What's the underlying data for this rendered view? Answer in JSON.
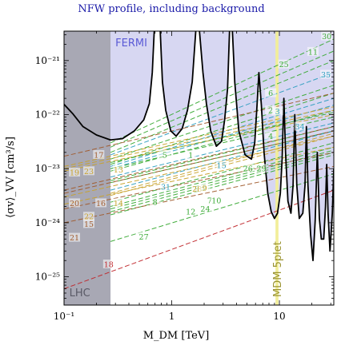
{
  "chart_data": {
    "type": "line",
    "title": "NFW profile, including background",
    "xlabel": "M_DM [TeV]",
    "ylabel": "⟨σv⟩_VV [cm³/s]",
    "x_scale": "log",
    "y_scale": "log",
    "xlim": [
      0.1,
      32
    ],
    "ylim": [
      3e-26,
      3.5e-21
    ],
    "x_ticks": [
      {
        "v": 0.1,
        "label": "10⁻¹"
      },
      {
        "v": 1,
        "label": "1"
      },
      {
        "v": 10,
        "label": "10"
      }
    ],
    "y_ticks": [
      {
        "v": 1e-25,
        "label": "10⁻²⁵"
      },
      {
        "v": 1e-24,
        "label": "10⁻²⁴"
      },
      {
        "v": 1e-23,
        "label": "10⁻²³"
      },
      {
        "v": 1e-22,
        "label": "10⁻²²"
      },
      {
        "v": 1e-21,
        "label": "10⁻²¹"
      }
    ],
    "regions": [
      {
        "name": "LHC",
        "x_range": [
          0.1,
          0.27
        ],
        "y_range": [
          3e-26,
          3.5e-21
        ],
        "color": "#a8a8b4"
      },
      {
        "name": "FERMI",
        "x_range": [
          0.27,
          32
        ],
        "boundary": "upper limit curve",
        "color": "#d7d7f2"
      },
      {
        "name": "MDM 5plet",
        "x_range": [
          9.2,
          9.8
        ],
        "color": "#f2ee9a"
      }
    ],
    "limit_curve_color": "#000000",
    "limit_curve_points": [
      [
        0.1,
        1.55e-22
      ],
      [
        0.12,
        1.05e-22
      ],
      [
        0.15,
        6e-23
      ],
      [
        0.2,
        4.2e-23
      ],
      [
        0.27,
        3.4e-23
      ],
      [
        0.35,
        3.6e-23
      ],
      [
        0.45,
        5e-23
      ],
      [
        0.55,
        8e-23
      ],
      [
        0.62,
        1.6e-22
      ],
      [
        0.66,
        6e-22
      ],
      [
        0.69,
        4e-21
      ],
      [
        0.78,
        4e-21
      ],
      [
        0.82,
        4e-22
      ],
      [
        0.88,
        1.2e-22
      ],
      [
        0.98,
        5e-23
      ],
      [
        1.1,
        4e-23
      ],
      [
        1.25,
        5.5e-23
      ],
      [
        1.4,
        1.2e-22
      ],
      [
        1.55,
        4e-22
      ],
      [
        1.68,
        4e-21
      ],
      [
        1.8,
        4e-21
      ],
      [
        1.95,
        6e-22
      ],
      [
        2.1,
        1.6e-22
      ],
      [
        2.3,
        5e-23
      ],
      [
        2.6,
        2.6e-23
      ],
      [
        2.9,
        3.2e-23
      ],
      [
        3.1,
        8e-23
      ],
      [
        3.3,
        3e-22
      ],
      [
        3.45,
        4e-21
      ],
      [
        3.65,
        4e-21
      ],
      [
        3.85,
        4e-22
      ],
      [
        4.2,
        5e-23
      ],
      [
        4.8,
        1.8e-23
      ],
      [
        5.5,
        1.5e-23
      ],
      [
        5.9,
        3e-23
      ],
      [
        6.2,
        1.5e-22
      ],
      [
        6.45,
        6e-22
      ],
      [
        6.8,
        1.5e-22
      ],
      [
        7.2,
        2e-23
      ],
      [
        7.8,
        3.5e-24
      ],
      [
        8.4,
        1.6e-24
      ],
      [
        9.0,
        1.2e-24
      ],
      [
        9.6,
        1.5e-24
      ],
      [
        10.2,
        3.5e-24
      ],
      [
        10.6,
        1.5e-23
      ],
      [
        11.0,
        2e-22
      ],
      [
        11.4,
        2e-23
      ],
      [
        12.0,
        2.5e-24
      ],
      [
        12.8,
        1.5e-24
      ],
      [
        13.4,
        5e-24
      ],
      [
        13.9,
        1e-22
      ],
      [
        14.5,
        5e-24
      ],
      [
        15.3,
        1.2e-24
      ],
      [
        16.5,
        1.5e-24
      ],
      [
        17.3,
        5e-24
      ],
      [
        17.8,
        6e-23
      ],
      [
        18.4,
        5e-24
      ],
      [
        19.5,
        6e-25
      ],
      [
        20.5,
        2e-25
      ],
      [
        21.5,
        1.1e-24
      ],
      [
        22.5,
        2e-23
      ],
      [
        23.5,
        1.2e-24
      ],
      [
        24.5,
        5e-25
      ],
      [
        25.8,
        5e-25
      ],
      [
        26.8,
        2e-24
      ],
      [
        27.5,
        1.2e-23
      ],
      [
        28.3,
        1.5e-24
      ],
      [
        29.5,
        3e-25
      ],
      [
        31,
        1.5e-24
      ],
      [
        32,
        1e-23
      ]
    ],
    "series": [
      {
        "name": "30",
        "x": [
          0.27,
          32
        ],
        "y": [
          3e-23,
          2.5e-21
        ],
        "color": "#3aaa35",
        "label_at": [
          27.5,
          2.8e-21
        ]
      },
      {
        "name": "11",
        "x": [
          0.27,
          32
        ],
        "y": [
          2.5e-23,
          1.5e-21
        ],
        "color": "#3aaa35",
        "label_at": [
          20.5,
          1.45e-21
        ]
      },
      {
        "name": "25",
        "x": [
          0.27,
          32
        ],
        "y": [
          2e-23,
          1e-21
        ],
        "color": "#3aaa35",
        "label_at": [
          11,
          8.5e-22
        ]
      },
      {
        "name": "35",
        "x": [
          0.27,
          32
        ],
        "y": [
          1.8e-23,
          6e-22
        ],
        "color": "#2f9fc0",
        "label_at": [
          27,
          5.5e-22
        ]
      },
      {
        "name": "6",
        "x": [
          0.27,
          32
        ],
        "y": [
          1.5e-23,
          3.5e-22
        ],
        "color": "#3aaa35",
        "label_at": [
          8.3,
          2.5e-22
        ]
      },
      {
        "name": "2",
        "x": [
          0.27,
          32
        ],
        "y": [
          1.2e-23,
          2.5e-22
        ],
        "color": "#3aaa35",
        "label_at": [
          8.3,
          1.2e-22
        ]
      },
      {
        "name": "3",
        "x": [
          0.27,
          32
        ],
        "y": [
          1.1e-23,
          2e-22
        ],
        "color": "#2f9fc0",
        "label_at": [
          9.6,
          1.15e-22
        ]
      },
      {
        "name": "34",
        "x": [
          0.27,
          32
        ],
        "y": [
          1e-23,
          1.5e-22
        ],
        "color": "#2f9fc0",
        "label_at": [
          15.5,
          6e-23
        ]
      },
      {
        "name": "4",
        "x": [
          0.27,
          32
        ],
        "y": [
          9e-24,
          1.2e-22
        ],
        "color": "#3aaa35",
        "label_at": [
          8.3,
          4e-23
        ]
      },
      {
        "name": "5",
        "x": [
          0.27,
          32
        ],
        "y": [
          1.3e-23,
          1.1e-22
        ],
        "color": "#3aaa35",
        "label_at": [
          0.86,
          1.8e-23
        ]
      },
      {
        "name": "1",
        "x": [
          0.27,
          32
        ],
        "y": [
          1e-23,
          9e-23
        ],
        "color": "#3aaa35",
        "label_at": [
          1.5,
          1.8e-23
        ]
      },
      {
        "name": "15",
        "x": [
          0.27,
          32
        ],
        "y": [
          7e-24,
          7e-23
        ],
        "color": "#2f9fc0",
        "label_at": [
          2.9,
          1.15e-23
        ]
      },
      {
        "name": "26",
        "x": [
          0.27,
          32
        ],
        "y": [
          6e-24,
          6e-23
        ],
        "color": "#3aaa35",
        "label_at": [
          5.1,
          1e-23
        ]
      },
      {
        "name": "29",
        "x": [
          0.27,
          32
        ],
        "y": [
          5.5e-24,
          5e-23
        ],
        "color": "#3aaa35",
        "label_at": [
          6.8,
          1e-23
        ]
      },
      {
        "name": "17",
        "x": [
          0.1,
          32
        ],
        "y": [
          1.7e-23,
          2.5e-22
        ],
        "color": "#a05a2c",
        "label_at": [
          0.21,
          1.8e-23
        ]
      },
      {
        "name": "19",
        "x": [
          0.1,
          32
        ],
        "y": [
          1.1e-23,
          1.4e-22
        ],
        "color": "#c8a22c",
        "label_at": [
          0.125,
          8.5e-24
        ]
      },
      {
        "name": "23",
        "x": [
          0.1,
          32
        ],
        "y": [
          1e-23,
          1.2e-22
        ],
        "color": "#c8a22c",
        "label_at": [
          0.17,
          9e-24
        ]
      },
      {
        "name": "13",
        "x": [
          0.1,
          32
        ],
        "y": [
          9e-24,
          1e-22
        ],
        "color": "#c8a22c",
        "label_at": [
          0.32,
          9.5e-24
        ]
      },
      {
        "name": "31",
        "x": [
          0.27,
          32
        ],
        "y": [
          4e-24,
          5e-23
        ],
        "color": "#2f9fc0",
        "label_at": [
          0.88,
          4.6e-24
        ]
      },
      {
        "name": "28",
        "x": [
          0.27,
          32
        ],
        "y": [
          3.5e-24,
          4.5e-23
        ],
        "color": "#c8a22c",
        "label_at": [
          1.72,
          4.2e-24
        ]
      },
      {
        "name": "9",
        "x": [
          0.27,
          32
        ],
        "y": [
          3.2e-24,
          4e-23
        ],
        "color": "#c8a22c",
        "label_at": [
          2.02,
          4.4e-24
        ]
      },
      {
        "name": "20",
        "x": [
          0.1,
          32
        ],
        "y": [
          4e-24,
          6e-23
        ],
        "color": "#a05a2c",
        "label_at": [
          0.125,
          2.3e-24
        ]
      },
      {
        "name": "16",
        "x": [
          0.1,
          32
        ],
        "y": [
          3.5e-24,
          5e-23
        ],
        "color": "#a05a2c",
        "label_at": [
          0.22,
          2.3e-24
        ]
      },
      {
        "name": "14",
        "x": [
          0.1,
          32
        ],
        "y": [
          3e-24,
          4e-23
        ],
        "color": "#c8a22c",
        "label_at": [
          0.32,
          2.3e-24
        ]
      },
      {
        "name": "8",
        "x": [
          0.27,
          32
        ],
        "y": [
          2.4e-24,
          3e-23
        ],
        "color": "#3aaa35",
        "label_at": [
          0.7,
          2.4e-24
        ]
      },
      {
        "name": "7",
        "x": [
          0.27,
          32
        ],
        "y": [
          2e-24,
          2.5e-23
        ],
        "color": "#3aaa35",
        "label_at": [
          2.25,
          2.6e-24
        ]
      },
      {
        "name": "10",
        "x": [
          0.27,
          32
        ],
        "y": [
          1.8e-24,
          2.2e-23
        ],
        "color": "#3aaa35",
        "label_at": [
          2.6,
          2.6e-24
        ]
      },
      {
        "name": "12",
        "x": [
          0.27,
          32
        ],
        "y": [
          1.6e-24,
          2e-23
        ],
        "color": "#3aaa35",
        "label_at": [
          1.5,
          1.6e-24
        ]
      },
      {
        "name": "24",
        "x": [
          0.27,
          32
        ],
        "y": [
          1.4e-24,
          1.8e-23
        ],
        "color": "#3aaa35",
        "label_at": [
          2.05,
          1.8e-24
        ]
      },
      {
        "name": "22",
        "x": [
          0.1,
          32
        ],
        "y": [
          2.2e-24,
          2.5e-23
        ],
        "color": "#c8a22c",
        "label_at": [
          0.17,
          1.3e-24
        ]
      },
      {
        "name": "15",
        "x": [
          0.1,
          32
        ],
        "y": [
          1.8e-24,
          2e-23
        ],
        "color": "#a05a2c",
        "label_at": [
          0.17,
          9.5e-25
        ]
      },
      {
        "name": "21",
        "x": [
          0.1,
          32
        ],
        "y": [
          1e-24,
          1.1e-23
        ],
        "color": "#a05a2c",
        "label_at": [
          0.125,
          5.3e-25
        ]
      },
      {
        "name": "27",
        "x": [
          0.27,
          32
        ],
        "y": [
          4.5e-25,
          8e-24
        ],
        "color": "#3aaa35",
        "label_at": [
          0.55,
          5.5e-25
        ]
      },
      {
        "name": "18",
        "x": [
          0.1,
          32
        ],
        "y": [
          6e-26,
          4e-24
        ],
        "color": "#c0282d",
        "label_at": [
          0.26,
          1.7e-25
        ]
      }
    ]
  }
}
